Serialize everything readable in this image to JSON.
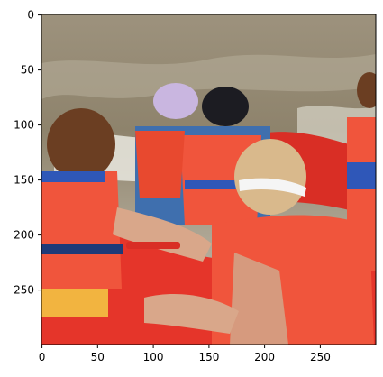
{
  "figure": {
    "x_ticks": [
      "0",
      "50",
      "100",
      "150",
      "200",
      "250"
    ],
    "y_ticks": [
      "0",
      "50",
      "100",
      "150",
      "200",
      "250"
    ],
    "image_description_icon": "photo-rafting-scene-icon",
    "colors": {
      "water": "#8f826b",
      "raft": "#e5352a",
      "lifejacket": "#f0553c",
      "helmet_blue": "#2f57b8",
      "background": "#ffffff"
    }
  }
}
